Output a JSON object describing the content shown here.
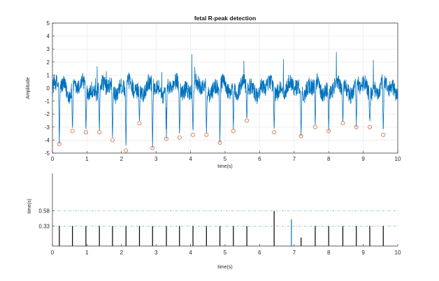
{
  "chart_data": [
    {
      "type": "line",
      "title": "fetal R-peak detection",
      "xlabel": "time(s)",
      "ylabel": "Amplitude",
      "xlim": [
        0,
        10
      ],
      "ylim": [
        -5,
        5
      ],
      "xticks": [
        0,
        1,
        2,
        3,
        4,
        5,
        6,
        7,
        8,
        9,
        10
      ],
      "yticks": [
        -5,
        -4,
        -3,
        -2,
        -1,
        0,
        1,
        2,
        3,
        4,
        5
      ],
      "grid": true,
      "signal_color": "#0072BD",
      "marker_color": "#D95319",
      "series": [
        {
          "kind": "detected-peaks",
          "marker": "circle",
          "x": [
            0.2,
            0.58,
            0.97,
            1.36,
            1.74,
            2.13,
            2.52,
            2.9,
            3.3,
            3.68,
            4.07,
            4.46,
            4.85,
            5.24,
            5.63,
            6.42,
            7.2,
            7.61,
            8.0,
            8.41,
            8.8,
            9.19,
            9.58
          ],
          "y": [
            -4.3,
            -3.3,
            -3.4,
            -3.4,
            -4.0,
            -4.8,
            -2.7,
            -4.6,
            -3.9,
            -3.8,
            -3.6,
            -3.6,
            -4.2,
            -3.3,
            -2.5,
            -3.4,
            -3.7,
            -3.0,
            -3.3,
            -2.7,
            -3.0,
            -3.0,
            -3.6
          ]
        }
      ]
    },
    {
      "type": "bar",
      "title": "",
      "xlabel": "time(s)",
      "ylabel": "time(s)",
      "xlim": [
        0,
        10
      ],
      "ylim": [
        0,
        1.2
      ],
      "xticks": [
        0,
        1,
        2,
        3,
        4,
        5,
        6,
        7,
        8,
        9,
        10
      ],
      "ytick_labels": [
        "0.33",
        "0.58"
      ],
      "ytick_values": [
        0.33,
        0.58
      ],
      "reference_lines": [
        0.58,
        0.33
      ],
      "stem_color": "#000000",
      "highlight_color": "#0072BD",
      "series": [
        {
          "kind": "rr-intervals",
          "x": [
            0.2,
            0.58,
            0.97,
            1.36,
            1.74,
            2.13,
            2.52,
            2.9,
            3.3,
            3.68,
            4.07,
            4.46,
            4.85,
            5.24,
            5.63,
            6.42,
            6.92,
            7.2,
            7.61,
            8.0,
            8.41,
            8.8,
            9.19,
            9.58
          ],
          "y": [
            0.33,
            0.33,
            0.33,
            0.33,
            0.33,
            0.33,
            0.33,
            0.33,
            0.33,
            0.33,
            0.33,
            0.33,
            0.33,
            0.33,
            0.33,
            0.58,
            0.44,
            0.14,
            0.33,
            0.33,
            0.33,
            0.33,
            0.33,
            0.33
          ],
          "highlight_index": 16
        }
      ]
    }
  ]
}
